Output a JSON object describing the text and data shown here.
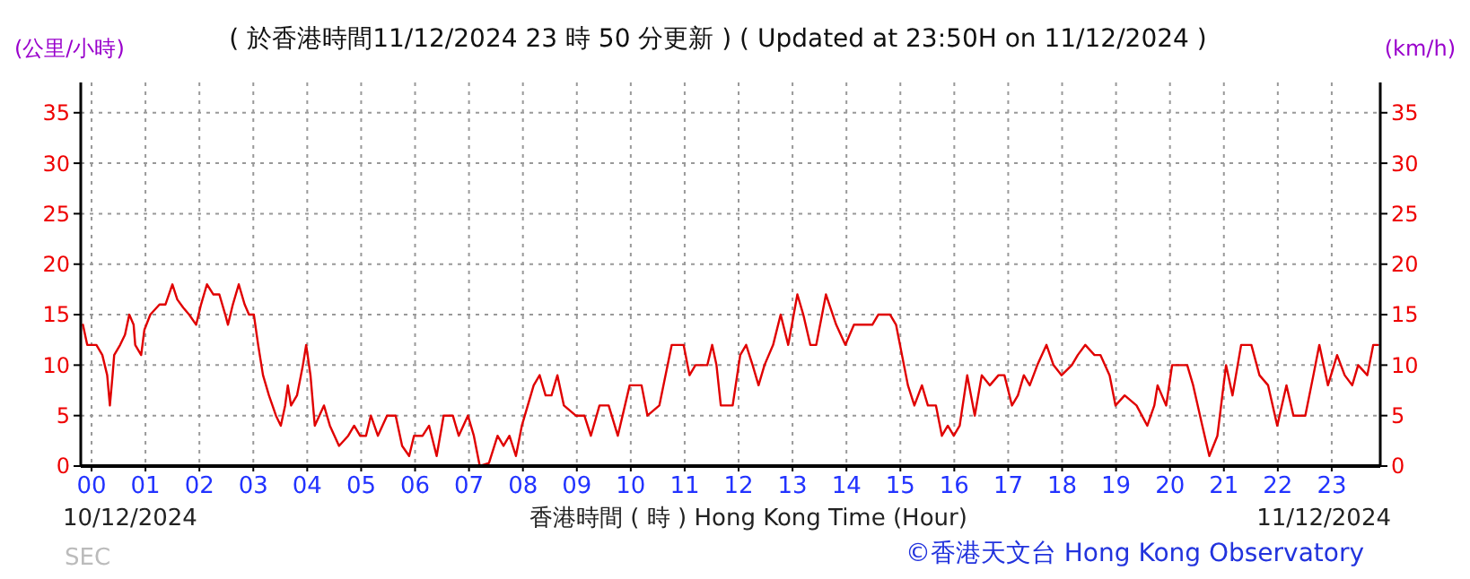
{
  "chart_data": {
    "type": "line",
    "title": "( 於香港時間11/12/2024 23 時 50 分更新 ) ( Updated at 23:50H on 11/12/2024 )",
    "xlabel": "香港時間 ( 時 )  Hong Kong Time (Hour)",
    "ylabel": "(公里/小時)",
    "y2label": "(km/h)",
    "annotations": [
      "10/12/2024",
      "11/12/2024",
      "SEC",
      "©香港天文台 Hong Kong Observatory"
    ],
    "xlim": [
      -0.2,
      23.9
    ],
    "ylim": [
      0,
      38
    ],
    "y2lim": [
      0,
      38
    ],
    "xticks": [
      {
        "value": 0,
        "label": "00"
      },
      {
        "value": 1,
        "label": "01"
      },
      {
        "value": 2,
        "label": "02"
      },
      {
        "value": 3,
        "label": "03"
      },
      {
        "value": 4,
        "label": "04"
      },
      {
        "value": 5,
        "label": "05"
      },
      {
        "value": 6,
        "label": "06"
      },
      {
        "value": 7,
        "label": "07"
      },
      {
        "value": 8,
        "label": "08"
      },
      {
        "value": 9,
        "label": "09"
      },
      {
        "value": 10,
        "label": "10"
      },
      {
        "value": 11,
        "label": "11"
      },
      {
        "value": 12,
        "label": "12"
      },
      {
        "value": 13,
        "label": "13"
      },
      {
        "value": 14,
        "label": "14"
      },
      {
        "value": 15,
        "label": "15"
      },
      {
        "value": 16,
        "label": "16"
      },
      {
        "value": 17,
        "label": "17"
      },
      {
        "value": 18,
        "label": "18"
      },
      {
        "value": 19,
        "label": "19"
      },
      {
        "value": 20,
        "label": "20"
      },
      {
        "value": 21,
        "label": "21"
      },
      {
        "value": 22,
        "label": "22"
      },
      {
        "value": 23,
        "label": "23"
      }
    ],
    "yticks": [
      0,
      5,
      10,
      15,
      20,
      25,
      30,
      35
    ],
    "y2ticks": [
      0,
      5,
      10,
      15,
      20,
      25,
      30,
      35
    ],
    "grid": true,
    "marker": "none",
    "line_style": "solid",
    "series": [
      {
        "color": "#e00000",
        "x": [
          -0.16,
          -0.08,
          0.09,
          0.2,
          0.29,
          0.34,
          0.39,
          0.42,
          0.53,
          0.62,
          0.7,
          0.78,
          0.81,
          0.92,
          0.98,
          1.09,
          1.26,
          1.37,
          1.5,
          1.59,
          1.7,
          1.81,
          1.94,
          2.03,
          2.14,
          2.26,
          2.37,
          2.48,
          2.53,
          2.62,
          2.73,
          2.84,
          2.92,
          3.01,
          3.09,
          3.18,
          3.29,
          3.42,
          3.51,
          3.59,
          3.64,
          3.7,
          3.81,
          3.92,
          3.98,
          4.06,
          4.14,
          4.31,
          4.42,
          4.59,
          4.76,
          4.87,
          4.98,
          5.09,
          5.18,
          5.31,
          5.48,
          5.64,
          5.76,
          5.89,
          5.98,
          6.14,
          6.26,
          6.4,
          6.53,
          6.7,
          6.81,
          6.98,
          7.09,
          7.2,
          7.37,
          7.53,
          7.64,
          7.75,
          7.87,
          7.98,
          8.09,
          8.2,
          8.31,
          8.42,
          8.53,
          8.64,
          8.76,
          8.98,
          9.14,
          9.26,
          9.42,
          9.59,
          9.76,
          9.98,
          10.2,
          10.31,
          10.53,
          10.76,
          10.98,
          11.09,
          11.2,
          11.42,
          11.51,
          11.59,
          11.67,
          11.89,
          12.03,
          12.14,
          12.26,
          12.37,
          12.48,
          12.64,
          12.78,
          12.92,
          13.09,
          13.2,
          13.33,
          13.44,
          13.62,
          13.81,
          13.98,
          14.14,
          14.48,
          14.59,
          14.81,
          14.92,
          15.03,
          15.14,
          15.26,
          15.4,
          15.51,
          15.66,
          15.77,
          15.88,
          15.99,
          16.1,
          16.24,
          16.38,
          16.51,
          16.66,
          16.82,
          16.93,
          17.07,
          17.18,
          17.29,
          17.4,
          17.54,
          17.71,
          17.84,
          17.99,
          18.18,
          18.29,
          18.43,
          18.6,
          18.71,
          18.88,
          18.99,
          19.16,
          19.38,
          19.58,
          19.71,
          19.77,
          19.93,
          20.04,
          20.32,
          20.43,
          20.6,
          20.73,
          20.88,
          21.04,
          21.16,
          21.32,
          21.51,
          21.66,
          21.82,
          21.99,
          22.16,
          22.29,
          22.51,
          22.66,
          22.77,
          22.93,
          23.1,
          23.24,
          23.38,
          23.49,
          23.66,
          23.77,
          23.86
        ],
        "values": [
          14,
          12,
          12,
          11,
          9,
          6,
          9,
          11,
          12,
          13,
          15,
          14,
          12,
          11,
          13.5,
          15,
          16,
          16,
          18,
          16.5,
          15.7,
          15,
          14,
          16,
          18,
          17,
          17,
          15,
          14,
          16,
          18,
          16,
          15,
          15,
          12,
          9,
          7,
          5,
          4,
          6,
          8,
          6,
          7,
          10,
          12,
          9,
          4,
          6,
          4,
          2,
          3,
          4,
          3,
          3,
          5,
          3,
          5,
          5,
          2,
          1,
          3,
          3,
          4,
          1,
          5,
          5,
          3,
          5,
          3,
          0,
          0.3,
          3,
          2,
          3,
          1,
          4,
          6,
          8,
          9,
          7,
          7,
          9,
          6,
          5,
          5,
          3,
          6,
          6,
          3,
          8,
          8,
          5,
          6,
          12,
          12,
          9,
          10,
          10,
          12,
          10,
          6,
          6,
          11,
          12,
          10,
          8,
          10,
          12,
          15,
          12,
          17,
          15,
          12,
          12,
          17,
          14,
          12,
          14,
          14,
          15,
          15,
          14,
          11,
          8,
          6,
          8,
          6,
          6,
          3,
          4,
          3,
          4,
          9,
          5,
          9,
          8,
          9,
          9,
          6,
          7,
          9,
          8,
          10,
          12,
          10,
          9,
          10,
          11,
          12,
          11,
          11,
          9,
          6,
          7,
          6,
          4,
          6,
          8,
          6,
          10,
          10,
          8,
          4,
          1,
          3,
          10,
          7,
          12,
          12,
          9,
          8,
          4,
          8,
          5,
          5,
          9,
          12,
          8,
          11,
          9,
          8,
          10,
          9,
          12,
          12
        ]
      }
    ]
  }
}
